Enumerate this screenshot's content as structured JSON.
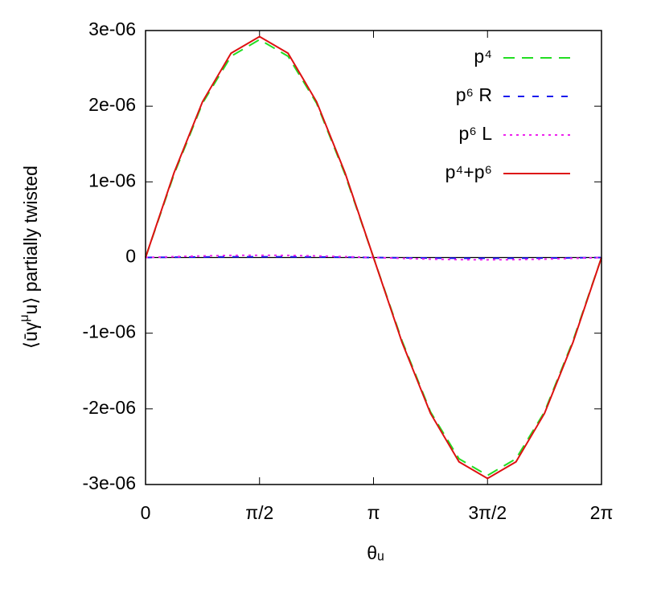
{
  "chart_data": {
    "type": "line",
    "xlabel": "θᵤ",
    "ylabel": [
      "⟨ūγ",
      "μ",
      "u⟩ partially twisted"
    ],
    "x": [
      0,
      0.3927,
      0.7854,
      1.1781,
      1.5708,
      1.9635,
      2.3562,
      2.7489,
      3.1416,
      3.5343,
      3.927,
      4.3197,
      4.7124,
      5.1051,
      5.4978,
      5.8905,
      6.2832
    ],
    "series": [
      {
        "name": "p⁴",
        "color": "#22dd22",
        "dash": "14,9",
        "values": [
          0,
          1.1e-06,
          2.04e-06,
          2.66e-06,
          2.88e-06,
          2.66e-06,
          2.04e-06,
          1.1e-06,
          0,
          -1.1e-06,
          -2.04e-06,
          -2.66e-06,
          -2.88e-06,
          -2.66e-06,
          -2.04e-06,
          -1.1e-06,
          0
        ]
      },
      {
        "name": "p⁶ R",
        "color": "#1a1aee",
        "dash": "8,10",
        "values": [
          0,
          4e-09,
          7e-09,
          9e-09,
          1e-08,
          9e-09,
          7e-09,
          4e-09,
          0,
          -4e-09,
          -7e-09,
          -9e-09,
          -1e-08,
          -9e-09,
          -7e-09,
          -4e-09,
          0
        ]
      },
      {
        "name": "p⁶ L",
        "color": "#ee22ee",
        "dash": "3,5",
        "values": [
          0,
          1.1e-08,
          2.1e-08,
          2.8e-08,
          3e-08,
          2.8e-08,
          2.1e-08,
          1.1e-08,
          0,
          -1.1e-08,
          -2.1e-08,
          -2.8e-08,
          -3e-08,
          -2.8e-08,
          -2.1e-08,
          -1.1e-08,
          0
        ]
      },
      {
        "name": "p⁴+p⁶",
        "color": "#dd1111",
        "dash": "none",
        "values": [
          0,
          1.12e-06,
          2.06e-06,
          2.7e-06,
          2.92e-06,
          2.7e-06,
          2.06e-06,
          1.12e-06,
          0,
          -1.12e-06,
          -2.06e-06,
          -2.7e-06,
          -2.92e-06,
          -2.7e-06,
          -2.06e-06,
          -1.12e-06,
          0
        ]
      }
    ],
    "xlim": [
      0,
      6.2832
    ],
    "xticks": [
      0,
      {
        "value": 1.5708,
        "label": "π/2"
      },
      {
        "value": 3.1416,
        "label": "π"
      },
      {
        "value": 4.7124,
        "label": "3π/2"
      },
      {
        "value": 6.2832,
        "label": "2π"
      }
    ],
    "ylim": [
      -3e-06,
      3e-06
    ],
    "yticks": [
      {
        "value": -3e-06,
        "label": "-3e-06"
      },
      {
        "value": -2e-06,
        "label": "-2e-06"
      },
      {
        "value": -1e-06,
        "label": "-1e-06"
      },
      0,
      {
        "value": 1e-06,
        "label": "1e-06"
      },
      {
        "value": 2e-06,
        "label": "2e-06"
      },
      {
        "value": 3e-06,
        "label": "3e-06"
      }
    ],
    "legend": "upper right"
  }
}
